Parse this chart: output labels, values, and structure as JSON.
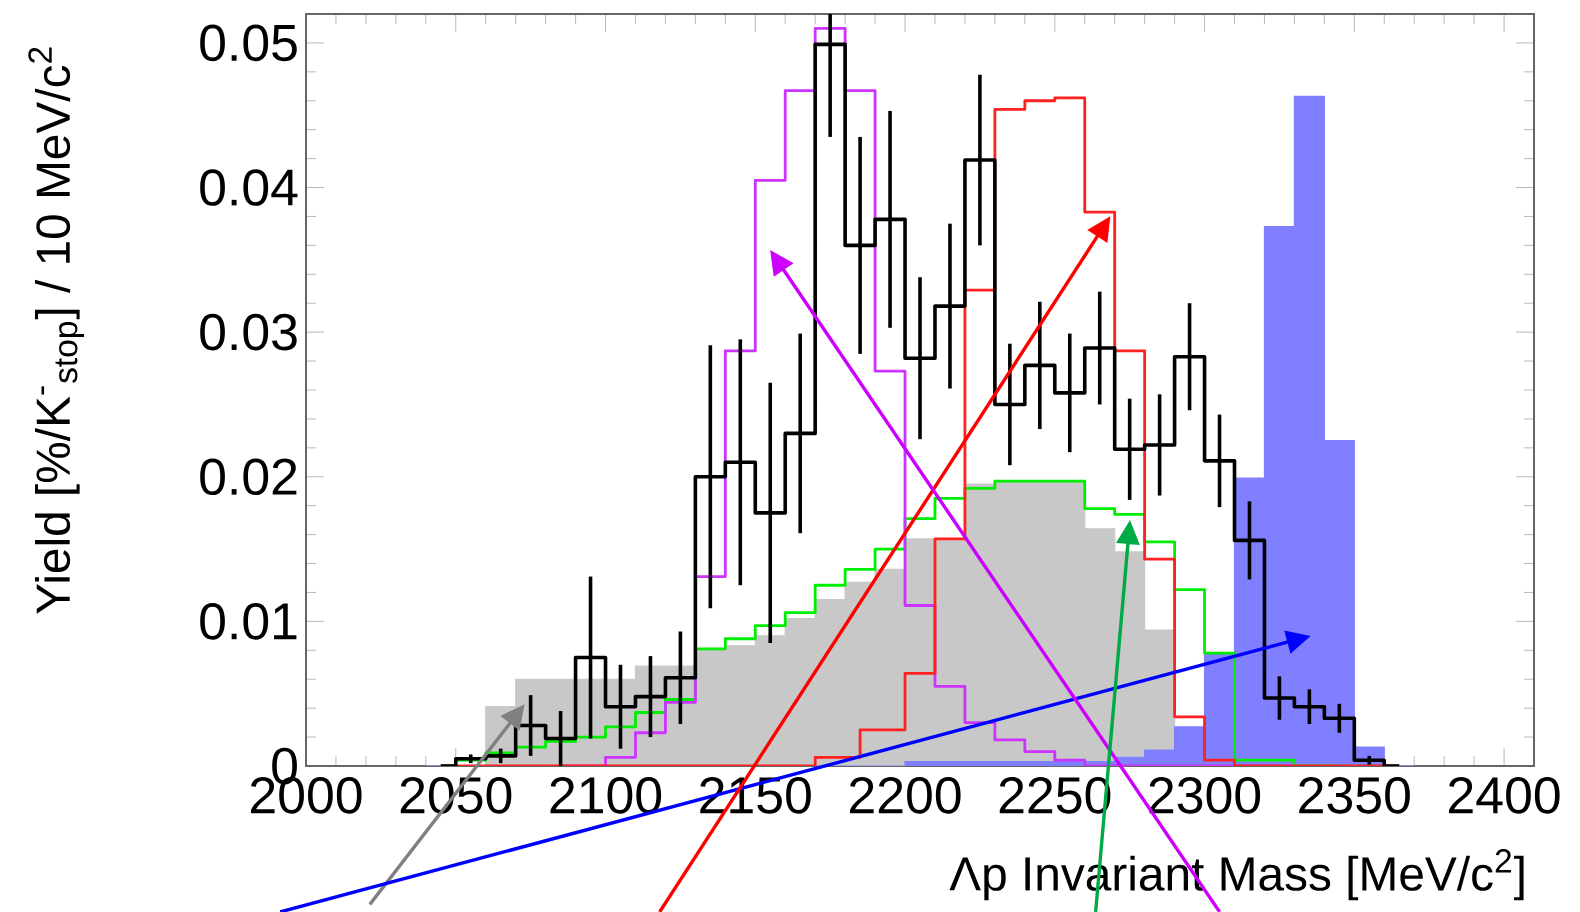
{
  "chart_data": {
    "type": "histogram",
    "xlabel": "Λp Invariant Mass [MeV/c$^{2}$]",
    "ylabel": "Yield [%/K$^{-}$$_{stop}$] / 10 MeV/c$^{2}$",
    "xlim": [
      2000,
      2410
    ],
    "ylim": [
      0,
      0.052
    ],
    "xticks": [
      2000,
      2050,
      2100,
      2150,
      2200,
      2250,
      2300,
      2350,
      2400
    ],
    "yticks": [
      0,
      0.01,
      0.02,
      0.03,
      0.04,
      0.05
    ],
    "bins": [
      2040,
      2050,
      2060,
      2070,
      2080,
      2090,
      2100,
      2110,
      2120,
      2130,
      2140,
      2150,
      2160,
      2170,
      2180,
      2190,
      2200,
      2210,
      2220,
      2230,
      2240,
      2250,
      2260,
      2270,
      2280,
      2290,
      2300,
      2310,
      2320,
      2330,
      2340,
      2350,
      2360,
      2370
    ],
    "series": [
      {
        "color": "#c8c8c8",
        "values": [
          0,
          0,
          0.0041,
          0.006,
          0.006,
          0.006,
          0.006,
          0.0069,
          0.0069,
          0.0081,
          0.0083,
          0.009,
          0.0102,
          0.0115,
          0.0127,
          0.0136,
          0.0157,
          0.0157,
          0.0195,
          0.0197,
          0.0197,
          0.0196,
          0.0164,
          0.0148,
          0.0094,
          null,
          null,
          0,
          0,
          0,
          0,
          0,
          0
        ]
      },
      {
        "color": "#7f7fff",
        "values": [
          0,
          0,
          0,
          0,
          0,
          0,
          0,
          0,
          0,
          0,
          0,
          0,
          0,
          0,
          0,
          0,
          0.0003,
          0.0003,
          0.0003,
          0.0003,
          0.0003,
          0.0003,
          0.0003,
          0.0006,
          0.0011,
          0.0027,
          0.0078,
          0.0199,
          0.0373,
          0.0463,
          0.0225,
          0.0013,
          0
        ]
      },
      {
        "type": "step",
        "color": "#00ee00",
        "x": [
          2045,
          2055,
          2065,
          2075,
          2085,
          2095,
          2105,
          2115,
          2125,
          2135,
          2145,
          2155,
          2165,
          2175,
          2185,
          2195,
          2205,
          2215,
          2225,
          2235,
          2245,
          2255,
          2265,
          2275,
          2285,
          2295,
          2305,
          2315,
          2325,
          2335,
          2345
        ],
        "values": [
          0,
          0.0004,
          0.0009,
          0.0013,
          0.0017,
          0.002,
          0.0027,
          0.0037,
          0.0046,
          0.0081,
          0.0088,
          0.0097,
          0.0106,
          0.0125,
          0.0136,
          0.015,
          0.0171,
          0.0185,
          0.0192,
          0.0197,
          0.0197,
          0.0197,
          0.0178,
          0.0174,
          0.0155,
          0.0122,
          0.0078,
          0.0004,
          0.0004,
          0,
          0
        ]
      },
      {
        "type": "step",
        "color": "#cc33ff",
        "x": [
          2085,
          2095,
          2105,
          2115,
          2125,
          2135,
          2145,
          2155,
          2165,
          2175,
          2185,
          2195,
          2205,
          2215,
          2225,
          2235,
          2245,
          2255,
          2265,
          2275,
          2285,
          2295,
          2305,
          2315,
          2325
        ],
        "values": [
          0,
          0,
          0.0006,
          0.0023,
          0.0044,
          0.0131,
          0.0287,
          0.0405,
          0.0467,
          0.051,
          0.0467,
          0.0273,
          0.0111,
          0.0055,
          0.003,
          0.0018,
          0.001,
          0.0004,
          0,
          0,
          0,
          0,
          0,
          0,
          0
        ]
      },
      {
        "type": "step",
        "color": "#ff2020",
        "x": [
          2045,
          2055,
          2065,
          2075,
          2085,
          2095,
          2105,
          2115,
          2125,
          2135,
          2145,
          2155,
          2165,
          2175,
          2185,
          2195,
          2205,
          2215,
          2225,
          2235,
          2245,
          2255,
          2265,
          2275,
          2285,
          2295,
          2305,
          2315,
          2325,
          2335,
          2345,
          2355,
          2365
        ],
        "values": [
          0,
          0,
          0,
          0,
          0,
          0,
          0,
          0,
          0,
          0,
          0,
          0,
          0,
          0.0006,
          null,
          0.0025,
          0.0064,
          0.0157,
          0.0329,
          0.0454,
          0.046,
          0.0462,
          0.0383,
          0.0287,
          0.0143,
          0.0034,
          0.0004,
          0,
          0,
          0,
          0,
          0,
          0
        ]
      },
      {
        "type": "step",
        "color": "#000000",
        "x": [
          2045,
          2055,
          2065,
          2075,
          2085,
          2095,
          2105,
          2115,
          2125,
          2135,
          2145,
          2155,
          2165,
          2175,
          2185,
          2195,
          2205,
          2215,
          2225,
          2235,
          2245,
          2255,
          2265,
          2275,
          2285,
          2295,
          2305,
          2315,
          2325,
          2335,
          2345,
          2355,
          2365
        ],
        "values": [
          0,
          0.0005,
          0.0007,
          0.0028,
          0.0019,
          0.0075,
          0.0041,
          0.0048,
          0.0061,
          0.02,
          0.021,
          0.0175,
          0.023,
          0.0499,
          0.036,
          0.0378,
          0.0282,
          0.0318,
          0.0419,
          0.025,
          0.0277,
          0.0258,
          0.0289,
          0.0219,
          0.0222,
          0.0283,
          0.0211,
          0.0156,
          0.0047,
          0.0041,
          0.0033,
          0.0004,
          0
        ],
        "errors": [
          null,
          0.0003,
          0.0005,
          0.0021,
          0.0019,
          0.0056,
          0.0029,
          0.0028,
          0.0032,
          0.0091,
          0.0085,
          0.009,
          0.0069,
          [
            0.0435,
            0.052
          ],
          0.0075,
          0.0075,
          0.0056,
          0.0057,
          0.0059,
          0.0042,
          0.0044,
          0.0041,
          0.0039,
          0.0035,
          0.0035,
          0.0037,
          0.0032,
          0.0027,
          0.0015,
          0.0012,
          0.001,
          0.0003,
          null
        ]
      }
    ]
  }
}
